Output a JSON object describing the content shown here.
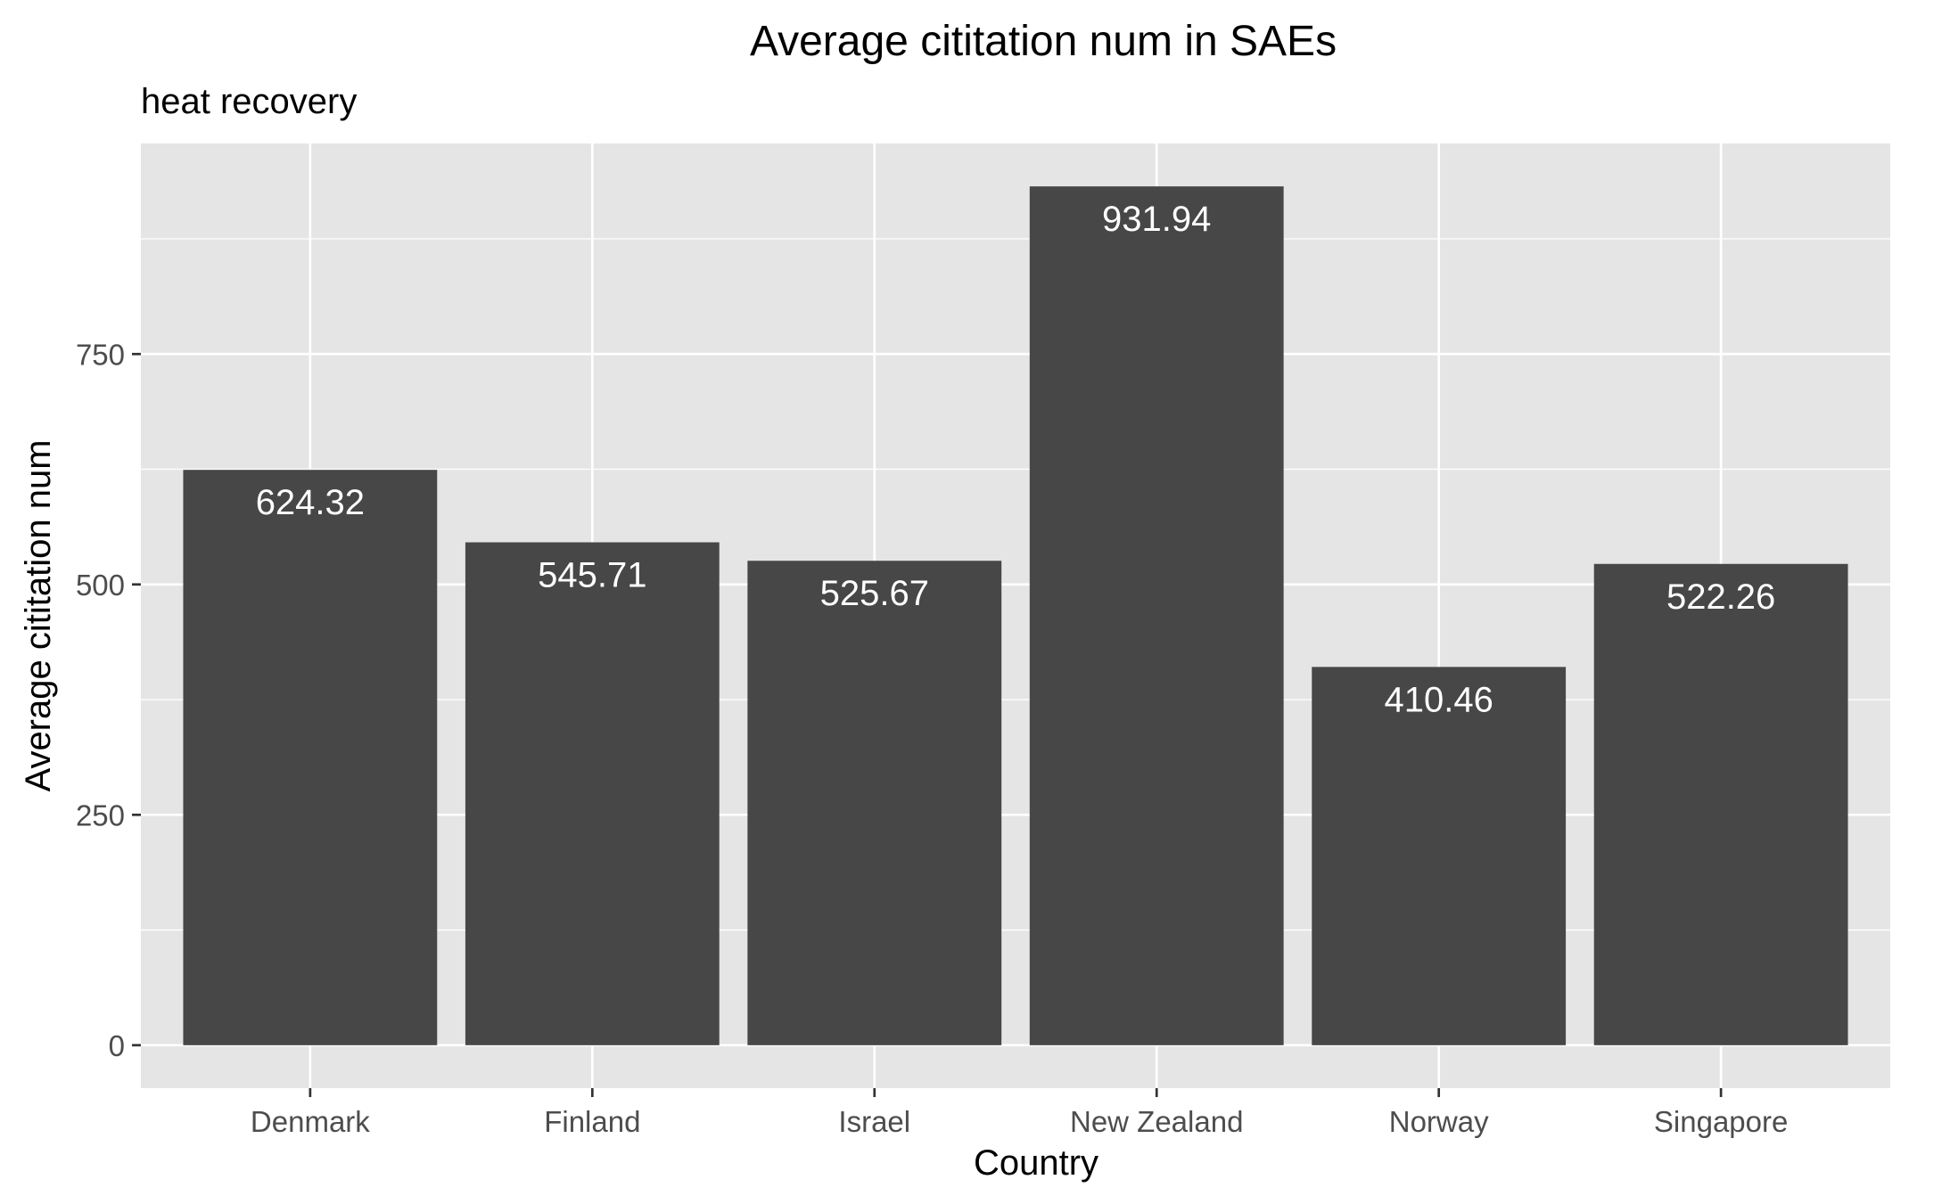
{
  "chart_data": {
    "type": "bar",
    "title": "Average cititation num in SAEs",
    "subtitle": "heat recovery",
    "xlabel": "Country",
    "ylabel": "Average cititation num",
    "categories": [
      "Denmark",
      "Finland",
      "Israel",
      "New Zealand",
      "Norway",
      "Singapore"
    ],
    "values": [
      624.32,
      545.71,
      525.67,
      931.94,
      410.46,
      522.26
    ],
    "value_labels": [
      "624.32",
      "545.71",
      "525.67",
      "931.94",
      "410.46",
      "522.26"
    ],
    "yticks": [
      0,
      250,
      500,
      750
    ],
    "ytick_labels": [
      "0",
      "250",
      "500",
      "750"
    ],
    "ylim": [
      -46.6,
      978.5
    ],
    "grid": true,
    "colors": {
      "panel": "#e5e5e5",
      "grid": "#ffffff",
      "bar": "#474747",
      "bar_label": "#ffffff",
      "tick": "#333333"
    }
  }
}
